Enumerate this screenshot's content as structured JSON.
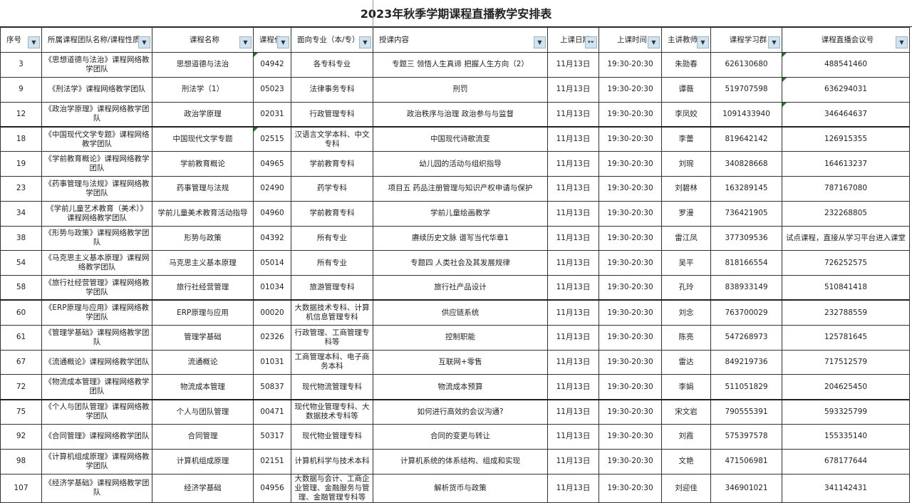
{
  "title": "2023年秋季学期课程直播教学安排表",
  "columns": [
    "序号",
    "所属课程团队名称/课程性质",
    "课程名称",
    "课程代",
    "面向专业（本/专）",
    "授课内容",
    "上课日期",
    "上课时间",
    "主讲教师",
    "课程学习群",
    "课程直播会议号"
  ],
  "filtered_column": "上课日期",
  "rows": [
    [
      "3",
      "《思想道德与法治》课程网络教学团队",
      "思想道德与法治",
      "04942",
      "各专科专业",
      "专题三 领悟人生真谛 把握人生方向（2）",
      "11月13日",
      "19:30-20:30",
      "朱勋春",
      "626130680",
      "488541460"
    ],
    [
      "9",
      "《刑法学》课程网络教学团队",
      "刑法学（1）",
      "05023",
      "法律事务专科",
      "刑罚",
      "11月13日",
      "19:30-20:30",
      "谭薇",
      "519707598",
      "636294031"
    ],
    [
      "12",
      "《政治学原理》课程网络教学团队",
      "政治学原理",
      "02031",
      "行政管理专科",
      "政治秩序与治理 政治参与与监督",
      "11月13日",
      "19:30-20:30",
      "李凤姣",
      "1091433940",
      "346464637"
    ],
    [
      "18",
      "《中国现代文学专题》课程网络教学团队",
      "中国现代文学专题",
      "02515",
      "汉语言文学本科、中文专科",
      "中国现代诗歌流变",
      "11月13日",
      "19:30-20:30",
      "李蕾",
      "819642142",
      "126915355"
    ],
    [
      "19",
      "《学前教育概论》课程网络教学团队",
      "学前教育概论",
      "04965",
      "学前教育专科",
      "幼儿园的活动与组织指导",
      "11月13日",
      "19:30-20:30",
      "刘琬",
      "340828668",
      "164613237"
    ],
    [
      "23",
      "《药事管理与法规》课程网络教学团队",
      "药事管理与法规",
      "02490",
      "药学专科",
      "项目五 药品注册管理与知识产权申请与保护",
      "11月13日",
      "19:30-20:30",
      "刘碧林",
      "163289145",
      "787167080"
    ],
    [
      "34",
      "《学前儿童艺术教育（美术）》课程网络教学团队",
      "学前儿童美术教育活动指导",
      "04960",
      "学前教育专科",
      "学前儿童绘画教学",
      "11月13日",
      "19:30-20:30",
      "罗漫",
      "736421905",
      "232268805"
    ],
    [
      "38",
      "《形势与政策》课程网络教学团队",
      "形势与政策",
      "04392",
      "所有专业",
      "赓续历史文脉 谱写当代华章1",
      "11月13日",
      "19:30-20:30",
      "雷江凤",
      "377309536",
      "试点课程，直接从学习平台进入课堂"
    ],
    [
      "54",
      "《马克思主义基本原理》课程网络教学团队",
      "马克思主义基本原理",
      "05014",
      "所有专业",
      "专题四 人类社会及其发展规律",
      "11月13日",
      "19:30-20:30",
      "吴平",
      "818166554",
      "726252575"
    ],
    [
      "58",
      "《旅行社经营管理》课程网络教学团队",
      "旅行社经营管理",
      "01034",
      "旅游管理专科",
      "旅行社产品设计",
      "11月13日",
      "19:30-20:30",
      "孔玲",
      "838933149",
      "510841418"
    ],
    [
      "60",
      "《ERP原理与应用》课程网络教学团队",
      "ERP原理与应用",
      "00020",
      "大数据技术专科、计算机信息管理专科",
      "供应链系统",
      "11月13日",
      "19:30-20:30",
      "刘念",
      "763700029",
      "232788559"
    ],
    [
      "61",
      "《管理学基础》课程网络教学团队",
      "管理学基础",
      "02326",
      "行政管理、工商管理专科等",
      "控制职能",
      "11月13日",
      "19:30-20:30",
      "陈亮",
      "547268973",
      "125781645"
    ],
    [
      "67",
      "《流通概论》课程网络教学团队",
      "流通概论",
      "01031",
      "工商管理本科、电子商务本科",
      "互联网+零售",
      "11月13日",
      "19:30-20:30",
      "雷达",
      "849219736",
      "717512579"
    ],
    [
      "72",
      "《物流成本管理》课程网络教学团队",
      "物流成本管理",
      "50837",
      "现代物流管理专科",
      "物流成本预算",
      "11月13日",
      "19:30-20:30",
      "李娟",
      "511051829",
      "204625450"
    ],
    [
      "75",
      "《个人与团队管理》课程网络教学团队",
      "个人与团队管理",
      "00471",
      "现代物业管理专科、大数据技术专科等",
      "如何进行高效的会议沟通?",
      "11月13日",
      "19:30-20:30",
      "宋文岩",
      "790555391",
      "593325799"
    ],
    [
      "92",
      "《合同管理》课程网络教学团队",
      "合同管理",
      "50317",
      "现代物业管理专科",
      "合同的变更与转让",
      "11月13日",
      "19:30-20:30",
      "刘霞",
      "575397578",
      "155335140"
    ],
    [
      "98",
      "《计算机组成原理》课程网络教学团队",
      "计算机组成原理",
      "02151",
      "计算机科学与技术本科",
      "计算机系统的体系结构、组成和实现",
      "11月13日",
      "19:30-20:30",
      "文艳",
      "471506981",
      "678177644"
    ],
    [
      "107",
      "《经济学基础》课程网络教学团队",
      "经济学基础",
      "04956",
      "大数据与会计、工商企业管理、金融服务与管理、金融管理专科等",
      "解析货币与政策",
      "11月13日",
      "19:30-20:30",
      "刘迎佳",
      "346901021",
      "341142431"
    ]
  ]
}
